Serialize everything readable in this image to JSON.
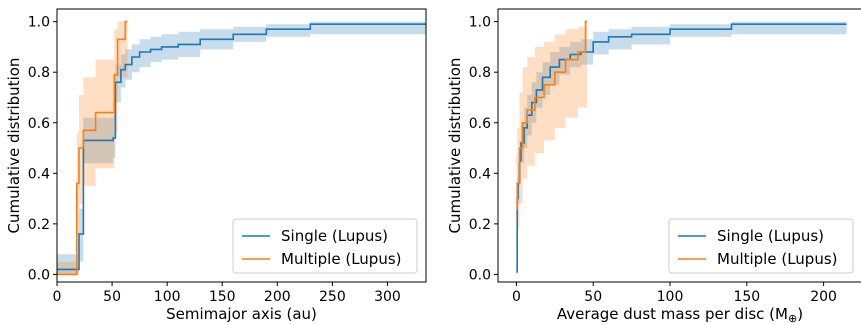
{
  "chart_data": [
    {
      "type": "line",
      "subtype": "step",
      "xlabel": "Semimajor axis (au)",
      "ylabel": "Cumulative distribution",
      "xlim": [
        0,
        335
      ],
      "ylim": [
        -0.03,
        1.05
      ],
      "xticks": [
        0,
        50,
        100,
        150,
        200,
        250,
        300
      ],
      "yticks": [
        0.0,
        0.2,
        0.4,
        0.6,
        0.8,
        1.0
      ],
      "legend_position": "bottom-right",
      "grid": false,
      "series": [
        {
          "name": "Single (Lupus)",
          "color": "#1f77b4",
          "band_color": "#1f77b4",
          "x": [
            0,
            17,
            20,
            24,
            30,
            40,
            51,
            53,
            58,
            62,
            68,
            75,
            85,
            95,
            110,
            130,
            160,
            190,
            230,
            335
          ],
          "y": [
            0.02,
            0.02,
            0.16,
            0.53,
            0.53,
            0.53,
            0.54,
            0.76,
            0.81,
            0.83,
            0.86,
            0.88,
            0.89,
            0.9,
            0.91,
            0.93,
            0.95,
            0.97,
            0.99,
            0.99
          ],
          "lower": [
            0.0,
            0.0,
            0.05,
            0.44,
            0.44,
            0.44,
            0.46,
            0.68,
            0.74,
            0.77,
            0.8,
            0.82,
            0.84,
            0.85,
            0.86,
            0.89,
            0.92,
            0.94,
            0.95,
            0.95
          ],
          "upper": [
            0.08,
            0.08,
            0.26,
            0.62,
            0.62,
            0.62,
            0.63,
            0.83,
            0.87,
            0.89,
            0.91,
            0.93,
            0.94,
            0.95,
            0.96,
            0.97,
            0.98,
            0.99,
            1.0,
            1.0
          ]
        },
        {
          "name": "Multiple (Lupus)",
          "color": "#ff7f0e",
          "band_color": "#ff7f0e",
          "x": [
            0,
            16,
            18,
            20,
            24,
            35,
            50,
            52,
            55,
            60,
            62,
            64
          ],
          "y": [
            0.0,
            0.0,
            0.36,
            0.5,
            0.57,
            0.64,
            0.64,
            0.79,
            0.93,
            0.93,
            1.0,
            1.0
          ],
          "lower": [
            0.0,
            0.0,
            0.16,
            0.28,
            0.35,
            0.42,
            0.42,
            0.56,
            0.78,
            0.78,
            0.78,
            0.78
          ],
          "upper": [
            0.05,
            0.05,
            0.56,
            0.71,
            0.78,
            0.85,
            0.85,
            0.97,
            1.0,
            1.0,
            1.0,
            1.0
          ]
        }
      ]
    },
    {
      "type": "line",
      "subtype": "step",
      "xlabel": "Average dust mass per disc (M",
      "xlabel_symbol": "⊕",
      "xlabel_close": ")",
      "ylabel": "Cumulative distribution",
      "xlim": [
        -12,
        225
      ],
      "ylim": [
        -0.03,
        1.05
      ],
      "xticks": [
        0,
        50,
        100,
        150,
        200
      ],
      "yticks": [
        0.0,
        0.2,
        0.4,
        0.6,
        0.8,
        1.0
      ],
      "legend_position": "bottom-right",
      "grid": false,
      "series": [
        {
          "name": "Single (Lupus)",
          "color": "#1f77b4",
          "band_color": "#1f77b4",
          "x": [
            0,
            0.5,
            1,
            2,
            3,
            5,
            7,
            10,
            13,
            17,
            22,
            28,
            35,
            42,
            50,
            60,
            75,
            100,
            140,
            215
          ],
          "y": [
            0.01,
            0.3,
            0.36,
            0.45,
            0.52,
            0.58,
            0.63,
            0.68,
            0.73,
            0.78,
            0.82,
            0.85,
            0.87,
            0.88,
            0.92,
            0.94,
            0.95,
            0.97,
            0.99,
            0.99
          ],
          "lower": [
            0.0,
            0.22,
            0.28,
            0.37,
            0.44,
            0.5,
            0.55,
            0.6,
            0.66,
            0.71,
            0.75,
            0.79,
            0.82,
            0.83,
            0.87,
            0.89,
            0.91,
            0.94,
            0.95,
            0.95
          ],
          "upper": [
            0.05,
            0.38,
            0.44,
            0.53,
            0.6,
            0.66,
            0.71,
            0.76,
            0.8,
            0.84,
            0.88,
            0.9,
            0.92,
            0.93,
            0.96,
            0.97,
            0.98,
            0.99,
            1.0,
            1.0
          ]
        },
        {
          "name": "Multiple  (Lupus)",
          "color": "#ff7f0e",
          "band_color": "#ff7f0e",
          "x": [
            0,
            0.5,
            2,
            4,
            7,
            12,
            18,
            25,
            32,
            40,
            45,
            46
          ],
          "y": [
            0.26,
            0.36,
            0.5,
            0.6,
            0.65,
            0.7,
            0.75,
            0.8,
            0.85,
            0.88,
            1.0,
            1.0
          ],
          "lower": [
            0.1,
            0.18,
            0.28,
            0.38,
            0.43,
            0.48,
            0.53,
            0.58,
            0.62,
            0.66,
            0.66,
            0.66
          ],
          "upper": [
            0.48,
            0.58,
            0.72,
            0.82,
            0.86,
            0.9,
            0.92,
            0.95,
            0.97,
            0.98,
            1.0,
            1.0
          ]
        }
      ]
    }
  ]
}
